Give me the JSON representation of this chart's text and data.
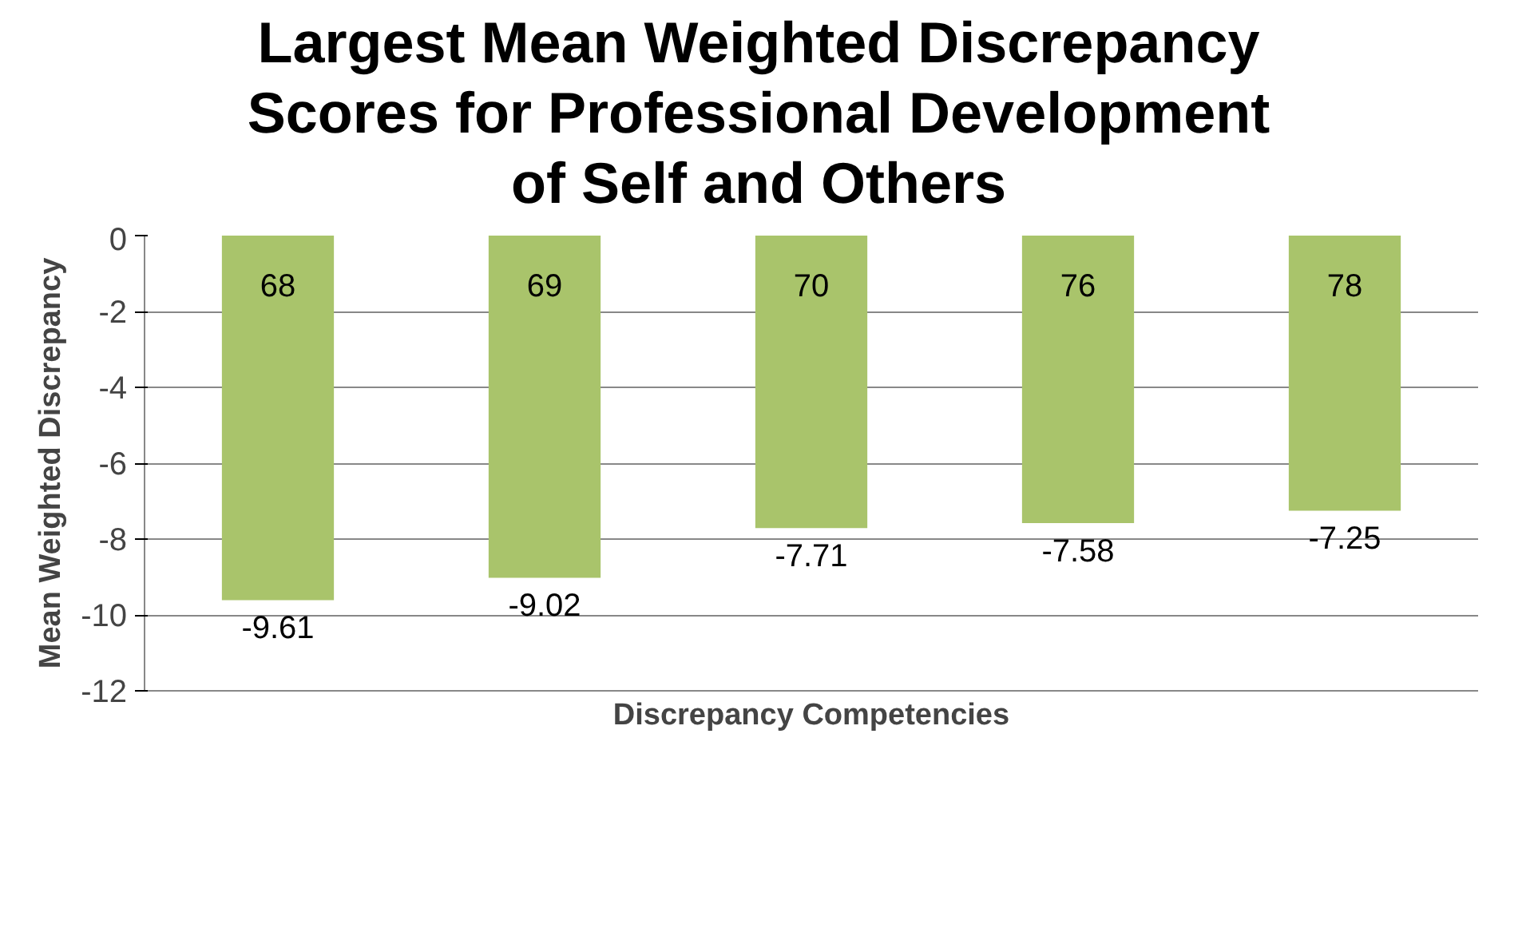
{
  "chart_data": {
    "type": "bar",
    "title": "Largest Mean Weighted Discrepancy Scores for Professional Development of Self and Others",
    "xlabel": "Discrepancy Competencies",
    "ylabel": "Mean Weighted Discrepancy",
    "categories": [
      "68",
      "69",
      "70",
      "76",
      "78"
    ],
    "values": [
      -9.61,
      -9.02,
      -7.71,
      -7.58,
      -7.25
    ],
    "color": "#a9c46b",
    "ylim": [
      -12,
      0
    ],
    "yticks": [
      0,
      -2,
      -4,
      -6,
      -8,
      -10,
      -12
    ],
    "grid": "y",
    "data_labels": true
  }
}
